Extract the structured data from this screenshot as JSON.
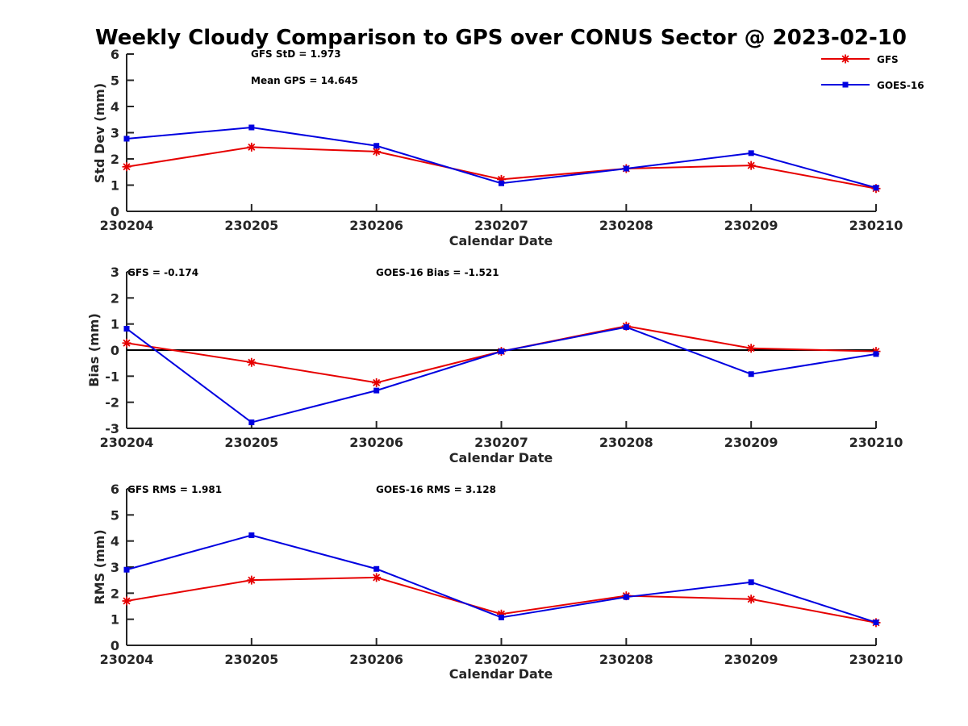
{
  "title": "Weekly Cloudy Comparison to GPS over CONUS Sector @ 2023-02-10",
  "colors": {
    "GFS": "#e60000",
    "GOES-16": "#0000e0"
  },
  "legend": {
    "position": "top-right",
    "entries": [
      {
        "name": "GFS",
        "marker": "asterisk"
      },
      {
        "name": "GOES-16",
        "marker": "square"
      }
    ]
  },
  "chart_data": [
    {
      "type": "line",
      "xlabel": "Calendar Date",
      "ylabel": "Std Dev (mm)",
      "ylim": [
        0,
        6
      ],
      "yticks": [
        "0",
        "1",
        "2",
        "3",
        "4",
        "5",
        "6"
      ],
      "categories": [
        "230204",
        "230205",
        "230206",
        "230207",
        "230208",
        "230209",
        "230210"
      ],
      "series": [
        {
          "name": "GFS",
          "values": [
            1.7,
            2.45,
            2.28,
            1.22,
            1.63,
            1.75,
            0.87
          ]
        },
        {
          "name": "GOES-16",
          "values": [
            2.77,
            3.2,
            2.5,
            1.07,
            1.63,
            2.22,
            0.9
          ]
        }
      ],
      "annotations": [
        "GFS StD = 1.973",
        "Mean GPS = 14.645"
      ],
      "zero_line": false
    },
    {
      "type": "line",
      "xlabel": "Calendar Date",
      "ylabel": "Bias (mm)",
      "ylim": [
        -3,
        3
      ],
      "yticks": [
        "-3",
        "-2",
        "-1",
        "0",
        "1",
        "2",
        "3"
      ],
      "categories": [
        "230204",
        "230205",
        "230206",
        "230207",
        "230208",
        "230209",
        "230210"
      ],
      "series": [
        {
          "name": "GFS",
          "values": [
            0.27,
            -0.47,
            -1.25,
            -0.05,
            0.92,
            0.07,
            -0.05
          ]
        },
        {
          "name": "GOES-16",
          "values": [
            0.82,
            -2.77,
            -1.55,
            -0.05,
            0.88,
            -0.92,
            -0.15
          ]
        }
      ],
      "annotations": [
        "GFS = -0.174",
        "GOES-16 Bias  = -1.521"
      ],
      "zero_line": true
    },
    {
      "type": "line",
      "xlabel": "Calendar Date",
      "ylabel": "RMS (mm)",
      "ylim": [
        0,
        6
      ],
      "yticks": [
        "0",
        "1",
        "2",
        "3",
        "4",
        "5",
        "6"
      ],
      "categories": [
        "230204",
        "230205",
        "230206",
        "230207",
        "230208",
        "230209",
        "230210"
      ],
      "series": [
        {
          "name": "GFS",
          "values": [
            1.7,
            2.5,
            2.6,
            1.2,
            1.9,
            1.77,
            0.87
          ]
        },
        {
          "name": "GOES-16",
          "values": [
            2.9,
            4.22,
            2.93,
            1.07,
            1.85,
            2.42,
            0.88
          ]
        }
      ],
      "annotations": [
        "GFS RMS = 1.981",
        "GOES-16 RMS = 3.128"
      ],
      "zero_line": false
    }
  ]
}
